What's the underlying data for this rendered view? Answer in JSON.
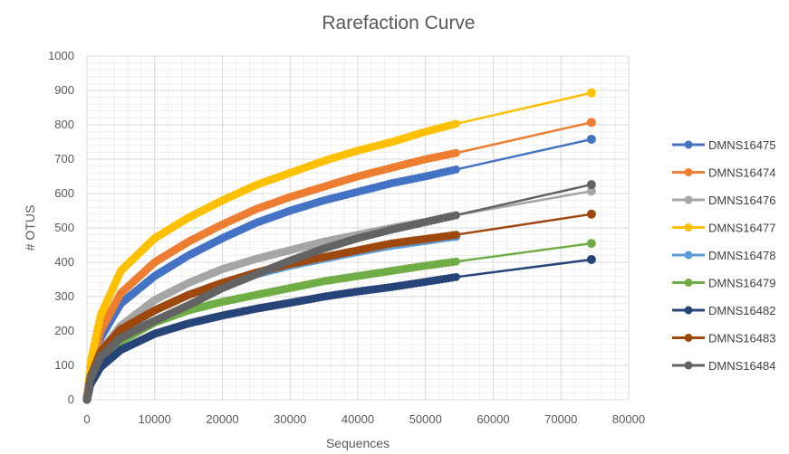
{
  "chart_data": {
    "type": "line",
    "title": "Rarefaction Curve",
    "xlabel": "Sequences",
    "ylabel": "# OTUS",
    "xlim": [
      0,
      80000
    ],
    "ylim": [
      0,
      1000
    ],
    "xticks": [
      0,
      10000,
      20000,
      30000,
      40000,
      50000,
      60000,
      70000,
      80000
    ],
    "yticks": [
      0,
      100,
      200,
      300,
      400,
      500,
      600,
      700,
      800,
      900,
      1000
    ],
    "grid": "major and minor",
    "legend": "right",
    "series": [
      {
        "name": "DMNS16475",
        "color": "#4472C4",
        "points": [
          [
            0,
            0
          ],
          [
            500,
            75
          ],
          [
            2000,
            180
          ],
          [
            5000,
            280
          ],
          [
            10000,
            360
          ],
          [
            15000,
            420
          ],
          [
            20000,
            470
          ],
          [
            25000,
            515
          ],
          [
            30000,
            550
          ],
          [
            35000,
            580
          ],
          [
            40000,
            605
          ],
          [
            45000,
            630
          ],
          [
            50000,
            650
          ],
          [
            54500,
            670
          ],
          [
            74500,
            758
          ]
        ]
      },
      {
        "name": "DMNS16474",
        "color": "#ED7D31",
        "points": [
          [
            0,
            0
          ],
          [
            500,
            85
          ],
          [
            2000,
            200
          ],
          [
            5000,
            310
          ],
          [
            10000,
            400
          ],
          [
            15000,
            460
          ],
          [
            20000,
            510
          ],
          [
            25000,
            555
          ],
          [
            30000,
            590
          ],
          [
            35000,
            620
          ],
          [
            40000,
            650
          ],
          [
            45000,
            675
          ],
          [
            50000,
            700
          ],
          [
            54500,
            718
          ],
          [
            74500,
            807
          ]
        ]
      },
      {
        "name": "DMNS16476",
        "color": "#A5A5A5",
        "points": [
          [
            0,
            0
          ],
          [
            500,
            60
          ],
          [
            2000,
            140
          ],
          [
            5000,
            215
          ],
          [
            10000,
            290
          ],
          [
            15000,
            340
          ],
          [
            20000,
            380
          ],
          [
            25000,
            410
          ],
          [
            30000,
            435
          ],
          [
            35000,
            460
          ],
          [
            40000,
            480
          ],
          [
            45000,
            500
          ],
          [
            50000,
            518
          ],
          [
            54500,
            537
          ],
          [
            74500,
            607
          ]
        ]
      },
      {
        "name": "DMNS16477",
        "color": "#FFC000",
        "points": [
          [
            0,
            0
          ],
          [
            500,
            105
          ],
          [
            2000,
            245
          ],
          [
            5000,
            375
          ],
          [
            10000,
            470
          ],
          [
            15000,
            530
          ],
          [
            20000,
            580
          ],
          [
            25000,
            625
          ],
          [
            30000,
            660
          ],
          [
            35000,
            695
          ],
          [
            40000,
            725
          ],
          [
            45000,
            750
          ],
          [
            50000,
            780
          ],
          [
            54500,
            803
          ],
          [
            74500,
            893
          ]
        ]
      },
      {
        "name": "DMNS16478",
        "color": "#5B9BD5",
        "points": [
          [
            0,
            0
          ],
          [
            500,
            60
          ],
          [
            2000,
            130
          ],
          [
            5000,
            200
          ],
          [
            10000,
            260
          ],
          [
            15000,
            305
          ],
          [
            20000,
            340
          ],
          [
            25000,
            365
          ],
          [
            30000,
            390
          ],
          [
            35000,
            410
          ],
          [
            40000,
            430
          ],
          [
            45000,
            448
          ],
          [
            50000,
            462
          ],
          [
            54500,
            475
          ]
        ]
      },
      {
        "name": "DMNS16479",
        "color": "#70AD47",
        "points": [
          [
            0,
            0
          ],
          [
            500,
            55
          ],
          [
            2000,
            115
          ],
          [
            5000,
            170
          ],
          [
            10000,
            225
          ],
          [
            15000,
            260
          ],
          [
            20000,
            285
          ],
          [
            25000,
            305
          ],
          [
            30000,
            325
          ],
          [
            35000,
            345
          ],
          [
            40000,
            360
          ],
          [
            45000,
            375
          ],
          [
            50000,
            390
          ],
          [
            54500,
            402
          ],
          [
            74500,
            455
          ]
        ]
      },
      {
        "name": "DMNS16482",
        "color": "#264478",
        "points": [
          [
            0,
            0
          ],
          [
            500,
            45
          ],
          [
            2000,
            95
          ],
          [
            5000,
            145
          ],
          [
            10000,
            192
          ],
          [
            15000,
            222
          ],
          [
            20000,
            245
          ],
          [
            25000,
            265
          ],
          [
            30000,
            282
          ],
          [
            35000,
            300
          ],
          [
            40000,
            315
          ],
          [
            45000,
            328
          ],
          [
            50000,
            343
          ],
          [
            54500,
            357
          ],
          [
            74500,
            408
          ]
        ]
      },
      {
        "name": "DMNS16483",
        "color": "#9E480E",
        "points": [
          [
            0,
            0
          ],
          [
            500,
            65
          ],
          [
            2000,
            140
          ],
          [
            5000,
            205
          ],
          [
            10000,
            260
          ],
          [
            15000,
            305
          ],
          [
            20000,
            340
          ],
          [
            25000,
            370
          ],
          [
            30000,
            395
          ],
          [
            35000,
            415
          ],
          [
            40000,
            435
          ],
          [
            45000,
            455
          ],
          [
            50000,
            468
          ],
          [
            54500,
            480
          ],
          [
            74500,
            540
          ]
        ]
      },
      {
        "name": "DMNS16484",
        "color": "#636363",
        "points": [
          [
            0,
            0
          ],
          [
            500,
            60
          ],
          [
            2000,
            125
          ],
          [
            5000,
            180
          ],
          [
            10000,
            230
          ],
          [
            15000,
            275
          ],
          [
            20000,
            325
          ],
          [
            25000,
            365
          ],
          [
            30000,
            405
          ],
          [
            35000,
            440
          ],
          [
            40000,
            470
          ],
          [
            45000,
            495
          ],
          [
            50000,
            517
          ],
          [
            54500,
            537
          ],
          [
            74500,
            626
          ]
        ]
      }
    ]
  }
}
